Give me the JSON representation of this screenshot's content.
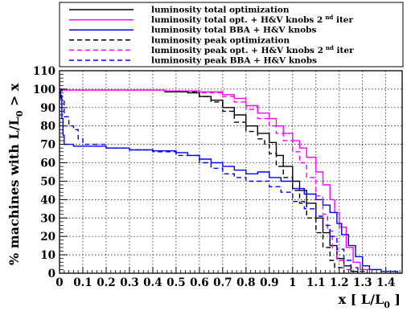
{
  "chart_data": {
    "type": "line",
    "title": "",
    "xlabel": "x [ L/L",
    "xlabel_sub": "0",
    "xlabel_end": " ]",
    "ylabel": "% machines with L/L",
    "ylabel_sub": "0",
    "ylabel_end": " > x",
    "xlim": [
      0,
      1.47
    ],
    "ylim": [
      0,
      110
    ],
    "xticks": [
      "0",
      "0.1",
      "0.2",
      "0.3",
      "0.4",
      "0.5",
      "0.6",
      "0.7",
      "0.8",
      "0.9",
      "1",
      "1.1",
      "1.2",
      "1.3",
      "1.4"
    ],
    "yticks": [
      "0",
      "10",
      "20",
      "30",
      "40",
      "50",
      "60",
      "70",
      "80",
      "90",
      "100",
      "110"
    ],
    "grid": true,
    "legend_position": "top",
    "series": [
      {
        "name": "luminosity total optimization",
        "color": "#000000",
        "dash": "solid",
        "points": [
          [
            0.45,
            98.5
          ],
          [
            0.55,
            98
          ],
          [
            0.6,
            96
          ],
          [
            0.65,
            94
          ],
          [
            0.7,
            90
          ],
          [
            0.75,
            86
          ],
          [
            0.8,
            80
          ],
          [
            0.85,
            76
          ],
          [
            0.9,
            71
          ],
          [
            0.93,
            64
          ],
          [
            0.96,
            58
          ],
          [
            1.0,
            50
          ],
          [
            1.03,
            45
          ],
          [
            1.06,
            38
          ],
          [
            1.1,
            30
          ],
          [
            1.13,
            22
          ],
          [
            1.16,
            15
          ],
          [
            1.19,
            8
          ],
          [
            1.22,
            4
          ],
          [
            1.25,
            1
          ],
          [
            1.28,
            0
          ]
        ]
      },
      {
        "name": "luminosity total opt. + H&V knobs 2",
        "name_sup": "nd",
        "name_end": " iter",
        "color": "#ff00ff",
        "dash": "solid",
        "points": [
          [
            0,
            99.5
          ],
          [
            0.3,
            99.5
          ],
          [
            0.45,
            99
          ],
          [
            0.6,
            98.5
          ],
          [
            0.7,
            97
          ],
          [
            0.75,
            95
          ],
          [
            0.8,
            91
          ],
          [
            0.85,
            87
          ],
          [
            0.9,
            84
          ],
          [
            0.93,
            80
          ],
          [
            0.96,
            76
          ],
          [
            1.0,
            72
          ],
          [
            1.03,
            68
          ],
          [
            1.06,
            63
          ],
          [
            1.1,
            55
          ],
          [
            1.13,
            48
          ],
          [
            1.16,
            40
          ],
          [
            1.18,
            33
          ],
          [
            1.2,
            25
          ],
          [
            1.23,
            14
          ],
          [
            1.26,
            6
          ],
          [
            1.29,
            2
          ],
          [
            1.33,
            0
          ]
        ]
      },
      {
        "name": "luminosity total BBA + H&V knobs",
        "color": "#0000ff",
        "dash": "solid",
        "points": [
          [
            0,
            100
          ],
          [
            0.005,
            95
          ],
          [
            0.01,
            84
          ],
          [
            0.015,
            75
          ],
          [
            0.02,
            70
          ],
          [
            0.06,
            69
          ],
          [
            0.2,
            68
          ],
          [
            0.3,
            67
          ],
          [
            0.4,
            66.5
          ],
          [
            0.5,
            65.5
          ],
          [
            0.55,
            64
          ],
          [
            0.6,
            62
          ],
          [
            0.65,
            60
          ],
          [
            0.7,
            58
          ],
          [
            0.75,
            56
          ],
          [
            0.8,
            54
          ],
          [
            0.85,
            55
          ],
          [
            0.9,
            52
          ],
          [
            0.95,
            50
          ],
          [
            1.0,
            46
          ],
          [
            1.05,
            43
          ],
          [
            1.1,
            40
          ],
          [
            1.13,
            37
          ],
          [
            1.16,
            33
          ],
          [
            1.19,
            27
          ],
          [
            1.21,
            21
          ],
          [
            1.24,
            15
          ],
          [
            1.27,
            9
          ],
          [
            1.3,
            4
          ],
          [
            1.33,
            2
          ],
          [
            1.38,
            1
          ],
          [
            1.45,
            0
          ]
        ]
      },
      {
        "name": "luminosity peak optimization",
        "color": "#000000",
        "dash": "dashed",
        "points": [
          [
            0.5,
            98.5
          ],
          [
            0.6,
            96
          ],
          [
            0.65,
            93
          ],
          [
            0.7,
            88
          ],
          [
            0.75,
            82
          ],
          [
            0.8,
            77
          ],
          [
            0.85,
            73
          ],
          [
            0.88,
            70
          ],
          [
            0.9,
            65
          ],
          [
            0.93,
            58
          ],
          [
            0.96,
            52
          ],
          [
            1.0,
            45
          ],
          [
            1.03,
            38
          ],
          [
            1.06,
            30
          ],
          [
            1.1,
            22
          ],
          [
            1.13,
            14
          ],
          [
            1.16,
            7
          ],
          [
            1.18,
            3
          ],
          [
            1.22,
            0
          ]
        ]
      },
      {
        "name": "luminosity peak opt. + H&V knobs 2",
        "name_sup": "nd",
        "name_end": " iter",
        "color": "#ff00ff",
        "dash": "dashed",
        "points": [
          [
            0,
            99.5
          ],
          [
            0.3,
            99.5
          ],
          [
            0.45,
            99
          ],
          [
            0.6,
            98
          ],
          [
            0.7,
            96
          ],
          [
            0.75,
            93
          ],
          [
            0.8,
            89
          ],
          [
            0.85,
            84
          ],
          [
            0.9,
            80
          ],
          [
            0.93,
            76
          ],
          [
            0.96,
            72
          ],
          [
            1.0,
            66
          ],
          [
            1.03,
            60
          ],
          [
            1.06,
            52
          ],
          [
            1.1,
            42
          ],
          [
            1.13,
            32
          ],
          [
            1.15,
            23
          ],
          [
            1.17,
            14
          ],
          [
            1.19,
            7
          ],
          [
            1.22,
            2
          ],
          [
            1.25,
            0
          ]
        ]
      },
      {
        "name": "luminosity peak BBA + H&V knobs",
        "color": "#0000ff",
        "dash": "dashed",
        "points": [
          [
            0,
            100
          ],
          [
            0.01,
            94
          ],
          [
            0.02,
            85
          ],
          [
            0.04,
            80
          ],
          [
            0.06,
            78
          ],
          [
            0.08,
            73
          ],
          [
            0.1,
            70
          ],
          [
            0.2,
            68
          ],
          [
            0.3,
            67
          ],
          [
            0.4,
            66
          ],
          [
            0.5,
            64
          ],
          [
            0.6,
            60
          ],
          [
            0.65,
            57
          ],
          [
            0.7,
            54
          ],
          [
            0.75,
            52
          ],
          [
            0.8,
            50
          ],
          [
            0.85,
            50
          ],
          [
            0.9,
            47
          ],
          [
            0.95,
            44
          ],
          [
            1.0,
            39
          ],
          [
            1.05,
            35
          ],
          [
            1.1,
            31
          ],
          [
            1.13,
            26
          ],
          [
            1.16,
            20
          ],
          [
            1.19,
            13
          ],
          [
            1.22,
            7
          ],
          [
            1.25,
            3
          ],
          [
            1.28,
            1
          ],
          [
            1.32,
            0
          ]
        ]
      }
    ]
  }
}
